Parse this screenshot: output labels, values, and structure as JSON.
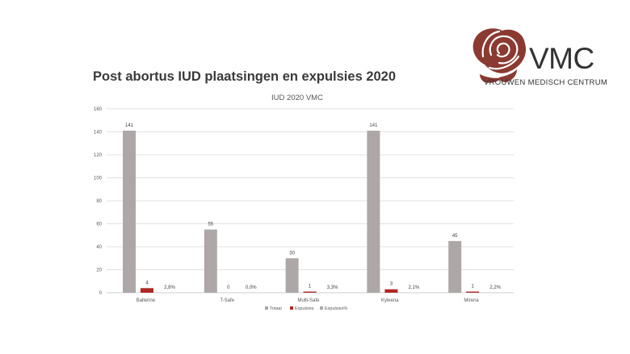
{
  "slide": {
    "title": "Post abortus IUD plaatsingen en expulsies 2020"
  },
  "logo": {
    "word": "VMC",
    "subtitle": "VROUWEN MEDISCH CENTRUM",
    "icon": "rose-icon",
    "color": "#8b3a32"
  },
  "colors": {
    "totaal": "#aea7a7",
    "expulsies": "#b22727",
    "expulsiesPct": "#aea7a7",
    "grid": "#d9d9d9"
  },
  "chart_data": {
    "type": "bar",
    "title": "IUD 2020 VMC",
    "categories": [
      "Ballerine",
      "T-Safe",
      "Multi-Safe",
      "Kyleena",
      "Mirena"
    ],
    "series": [
      {
        "name": "Totaal",
        "values": [
          141,
          55,
          30,
          141,
          45
        ],
        "labels": [
          "141",
          "55",
          "30",
          "141",
          "45"
        ]
      },
      {
        "name": "Expulsies",
        "values": [
          4,
          0,
          1,
          3,
          1
        ],
        "labels": [
          "4",
          "0",
          "1",
          "3",
          "1"
        ]
      },
      {
        "name": "Expulsies%",
        "values": [
          2.8,
          0.0,
          3.3,
          2.1,
          2.2
        ],
        "labels": [
          "2,8%",
          "0,0%",
          "3,3%",
          "2,1%",
          "2,2%"
        ]
      }
    ],
    "ylim": [
      0,
      160
    ],
    "yticks": [
      0,
      20,
      40,
      60,
      80,
      100,
      120,
      140,
      160
    ],
    "xlabel": "",
    "ylabel": "",
    "grid": true,
    "legend": "bottom"
  }
}
